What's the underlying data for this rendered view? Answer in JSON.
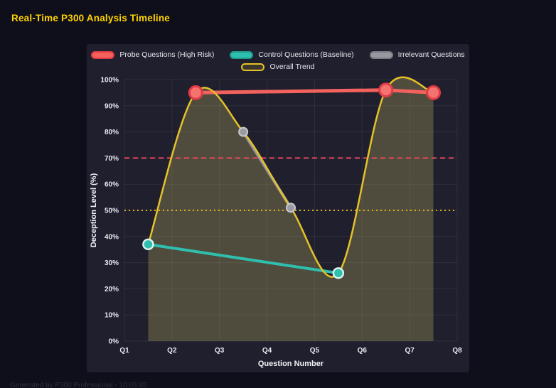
{
  "title": "Real-Time P300 Analysis Timeline",
  "footer": "Generated by P300 Professional - 10:05:45",
  "colors": {
    "page_bg": "#0f0f1b",
    "panel_bg": "#1f1f2e",
    "title": "#ffd400"
  },
  "chart_data": {
    "type": "line",
    "title": "Real-Time P300 Analysis Timeline",
    "xlabel": "Question Number",
    "ylabel": "Deception Level (%)",
    "x_ticks": [
      "Q1",
      "Q2",
      "Q3",
      "Q4",
      "Q5",
      "Q6",
      "Q7",
      "Q8"
    ],
    "x_tick_values": [
      1,
      2,
      3,
      4,
      5,
      6,
      7,
      8
    ],
    "x_range": [
      1,
      8
    ],
    "ylim": [
      0,
      100
    ],
    "y_ticks": [
      "0%",
      "10%",
      "20%",
      "30%",
      "40%",
      "50%",
      "60%",
      "70%",
      "80%",
      "90%",
      "100%"
    ],
    "y_tick_values": [
      0,
      10,
      20,
      30,
      40,
      50,
      60,
      70,
      80,
      90,
      100
    ],
    "grid": true,
    "grid_color": "rgba(255,255,255,0.07)",
    "legend_position": "top",
    "legend_rows": [
      [
        0,
        1,
        2
      ],
      [
        3
      ]
    ],
    "series": [
      {
        "name": "Probe Questions (High Risk)",
        "color": "#f4625e",
        "line_width": 5,
        "smooth": false,
        "fill": null,
        "points": [
          [
            2.5,
            95
          ],
          [
            6.5,
            96
          ],
          [
            7.5,
            95
          ]
        ],
        "marker": {
          "radius": 9,
          "fill": "#f4736f",
          "stroke": "#e03a46",
          "stroke_width": 3
        },
        "swatch": {
          "fill": "#f4625e",
          "border": "#e03a46"
        }
      },
      {
        "name": "Control Questions (Baseline)",
        "color": "#2fbfae",
        "line_width": 4,
        "smooth": false,
        "fill": null,
        "points": [
          [
            1.5,
            37
          ],
          [
            5.5,
            26
          ]
        ],
        "marker": {
          "radius": 7,
          "fill": "#2fbfae",
          "stroke": "#daf2ee",
          "stroke_width": 2.5
        },
        "swatch": {
          "fill": "#2fbfae",
          "border": "#1f9a8c"
        }
      },
      {
        "name": "Irrelevant Questions",
        "color": "#98989f",
        "line_width": 4,
        "smooth": false,
        "fill": null,
        "points": [
          [
            3.5,
            80
          ],
          [
            4.5,
            51
          ]
        ],
        "marker": {
          "radius": 6,
          "fill": "#9b9ba3",
          "stroke": "#c9c9d0",
          "stroke_width": 2
        },
        "swatch": {
          "fill": "#98989f",
          "border": "#7a7a82"
        }
      },
      {
        "name": "Overall Trend",
        "color": "#e6c229",
        "line_width": 2.5,
        "smooth": true,
        "fill": "rgba(222,203,105,0.26)",
        "points": [
          [
            1.5,
            37
          ],
          [
            2.5,
            95
          ],
          [
            3.5,
            80
          ],
          [
            4.5,
            51
          ],
          [
            5.5,
            26
          ],
          [
            6.5,
            96
          ],
          [
            7.5,
            95
          ]
        ],
        "marker": null,
        "swatch": {
          "fill": "rgba(230,194,41,0.15)",
          "border": "#e6c229"
        }
      }
    ],
    "reference_lines": [
      {
        "y": 70,
        "color": "#e8455e",
        "dash": "7 5",
        "width": 2
      },
      {
        "y": 50,
        "color": "#d9b01c",
        "dash": "2 4",
        "width": 2
      }
    ]
  }
}
